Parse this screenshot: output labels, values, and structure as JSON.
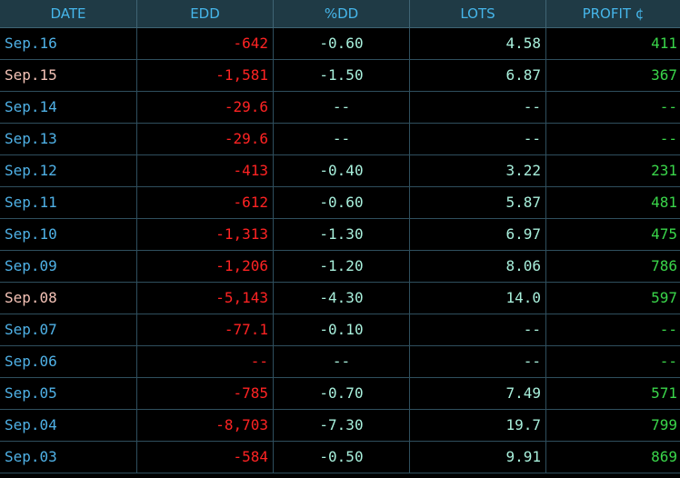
{
  "headers": {
    "date": "DATE",
    "edd": "EDD",
    "dd": "%DD",
    "lots": "LOTS",
    "profit": "PROFIT ¢"
  },
  "colors": {
    "background": "#000000",
    "header_bg": "#1f3a45",
    "header_text": "#46b6ea",
    "date_text": "#4fb1e6",
    "date_highlight": "#f4c2b6",
    "edd_text": "#ff2323",
    "value_text": "#a8f0dc",
    "profit_text": "#3ad64a"
  },
  "rows": [
    {
      "date": "Sep.16",
      "edd": "-642",
      "dd": "-0.60",
      "lots": "4.58",
      "profit": "411",
      "highlight": false
    },
    {
      "date": "Sep.15",
      "edd": "-1,581",
      "dd": "-1.50",
      "lots": "6.87",
      "profit": "367",
      "highlight": true
    },
    {
      "date": "Sep.14",
      "edd": "-29.6",
      "dd": "--",
      "lots": "--",
      "profit": "--",
      "highlight": false
    },
    {
      "date": "Sep.13",
      "edd": "-29.6",
      "dd": "--",
      "lots": "--",
      "profit": "--",
      "highlight": false
    },
    {
      "date": "Sep.12",
      "edd": "-413",
      "dd": "-0.40",
      "lots": "3.22",
      "profit": "231",
      "highlight": false
    },
    {
      "date": "Sep.11",
      "edd": "-612",
      "dd": "-0.60",
      "lots": "5.87",
      "profit": "481",
      "highlight": false
    },
    {
      "date": "Sep.10",
      "edd": "-1,313",
      "dd": "-1.30",
      "lots": "6.97",
      "profit": "475",
      "highlight": false
    },
    {
      "date": "Sep.09",
      "edd": "-1,206",
      "dd": "-1.20",
      "lots": "8.06",
      "profit": "786",
      "highlight": false
    },
    {
      "date": "Sep.08",
      "edd": "-5,143",
      "dd": "-4.30",
      "lots": "14.0",
      "profit": "597",
      "highlight": true
    },
    {
      "date": "Sep.07",
      "edd": "-77.1",
      "dd": "-0.10",
      "lots": "--",
      "profit": "--",
      "highlight": false
    },
    {
      "date": "Sep.06",
      "edd": "--",
      "dd": "--",
      "lots": "--",
      "profit": "--",
      "highlight": false
    },
    {
      "date": "Sep.05",
      "edd": "-785",
      "dd": "-0.70",
      "lots": "7.49",
      "profit": "571",
      "highlight": false
    },
    {
      "date": "Sep.04",
      "edd": "-8,703",
      "dd": "-7.30",
      "lots": "19.7",
      "profit": "799",
      "highlight": false
    },
    {
      "date": "Sep.03",
      "edd": "-584",
      "dd": "-0.50",
      "lots": "9.91",
      "profit": "869",
      "highlight": false
    }
  ]
}
